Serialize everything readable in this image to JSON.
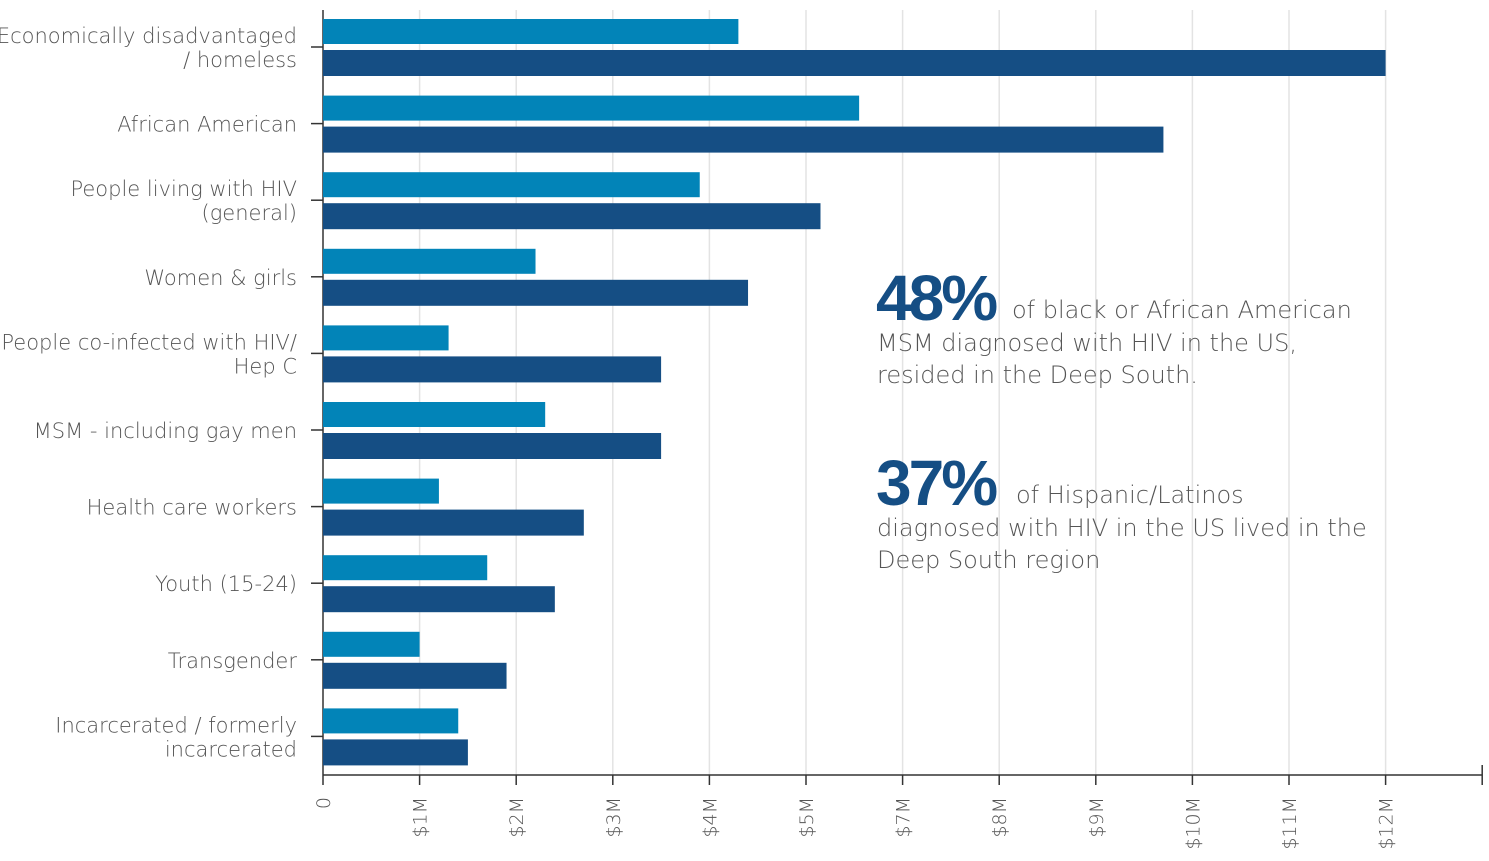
{
  "chart_data": {
    "type": "barh",
    "categories": [
      [
        "Economically disadvantaged",
        "/ homeless"
      ],
      [
        "African American"
      ],
      [
        "People living with HIV",
        "(general)"
      ],
      [
        "Women & girls"
      ],
      [
        "People co-infected with HIV/",
        "Hep C"
      ],
      [
        "MSM - including gay men"
      ],
      [
        "Health care workers"
      ],
      [
        "Youth (15-24)"
      ],
      [
        "Transgender"
      ],
      [
        "Incarcerated / formerly",
        "incarcerated"
      ]
    ],
    "series": [
      {
        "color": "#0284b8",
        "values": [
          4300000,
          6100000,
          3900000,
          2200000,
          1300000,
          2300000,
          1200000,
          1700000,
          1000000,
          1400000
        ]
      },
      {
        "color": "#154e84",
        "values": [
          12000000,
          9700000,
          5300000,
          4400000,
          3500000,
          3500000,
          2700000,
          2400000,
          1900000,
          1500000
        ]
      }
    ],
    "xlim": [
      0,
      13000000
    ],
    "xticks": [
      0,
      {
        "value": 1000000,
        "label": "$1M"
      },
      {
        "value": 2000000,
        "label": "$2M"
      },
      {
        "value": 3000000,
        "label": "$3M"
      },
      {
        "value": 4000000,
        "label": "$4M"
      },
      {
        "value": 5000000,
        "label": "$5M"
      },
      {
        "value": 7000000,
        "label": "$7M"
      },
      {
        "value": 8000000,
        "label": "$8M"
      },
      {
        "value": 9000000,
        "label": "$9M"
      },
      {
        "value": 10000000,
        "label": "$10M"
      },
      {
        "value": 11000000,
        "label": "$11M"
      },
      {
        "value": 12000000,
        "label": "$12M"
      }
    ],
    "grid": true,
    "annotations": [
      {
        "figure": "48%",
        "text": [
          "of black or African American",
          "MSM diagnosed with HIV in the US,",
          "resided in the Deep South."
        ]
      },
      {
        "figure": "37%",
        "text": [
          "of Hispanic/Latinos",
          "diagnosed with HIV in the US lived in the",
          "Deep South region"
        ]
      }
    ]
  }
}
